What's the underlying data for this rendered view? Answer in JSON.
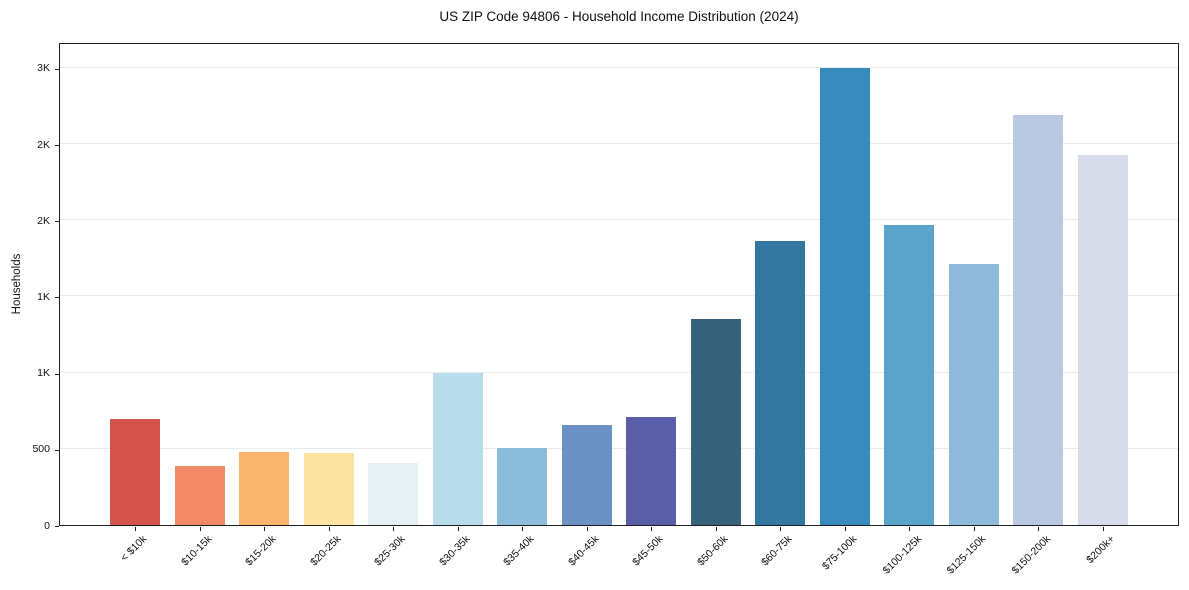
{
  "chart_data": {
    "type": "bar",
    "title": "US ZIP Code 94806 - Household Income Distribution (2024)",
    "xlabel": "",
    "ylabel": "Households",
    "ylim": [
      0,
      3170
    ],
    "grid": true,
    "legend": false,
    "background_color": "#ffffff",
    "gridline_color": "#ebebee",
    "axis_color": "#1f1f1f",
    "y_ticks": [
      {
        "value": 0,
        "label": "0"
      },
      {
        "value": 500,
        "label": "500"
      },
      {
        "value": 1000,
        "label": "1K"
      },
      {
        "value": 1500,
        "label": "1K"
      },
      {
        "value": 2000,
        "label": "2K"
      },
      {
        "value": 2500,
        "label": "2K"
      },
      {
        "value": 3000,
        "label": "3K"
      }
    ],
    "categories": [
      "< $10k",
      "$10-15k",
      "$15-20k",
      "$20-25k",
      "$25-30k",
      "$30-35k",
      "$35-40k",
      "$40-45k",
      "$45-50k",
      "$50-60k",
      "$60-75k",
      "$75-100k",
      "$100-125k",
      "$125-150k",
      "$150-200k",
      "$200k+"
    ],
    "values": [
      700,
      390,
      480,
      475,
      410,
      1000,
      505,
      660,
      710,
      1360,
      1870,
      3010,
      1980,
      1720,
      2700,
      2440
    ],
    "bar_colors": [
      "#d5534d",
      "#f28a68",
      "#f9b46e",
      "#fde4a1",
      "#e6f1f3",
      "#b9dcea",
      "#8bbddb",
      "#6b92c3",
      "#5a5ea8",
      "#37617a",
      "#35789f",
      "#388bbd",
      "#5ba4c9",
      "#90bada",
      "#b9c9e2",
      "#d8dbe9"
    ]
  }
}
